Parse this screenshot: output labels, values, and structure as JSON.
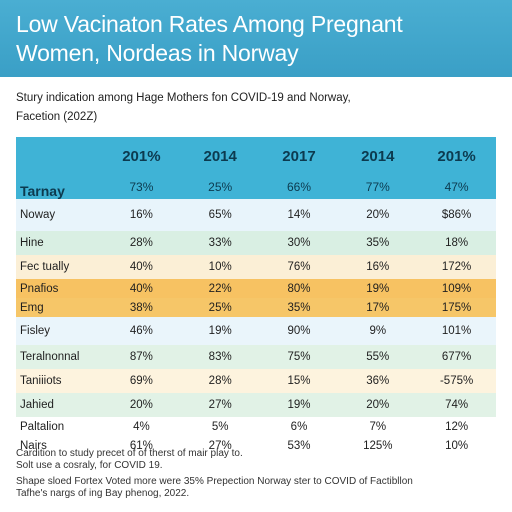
{
  "title_lines": [
    "Low Vacinaton Rates Among Pregnant",
    "Women, Nordeas in Norway"
  ],
  "subtitle_lines": [
    "Stury indication among Hage Mothers fon COVID-19 and Norway,",
    "Facetion (202Z)"
  ],
  "table": {
    "corner_label": "Tarnay",
    "years": [
      "201%",
      "2014",
      "2017",
      "2014",
      "201%"
    ],
    "header_values": [
      "73%",
      "25%",
      "66%",
      "77%",
      "47%"
    ],
    "rows": [
      {
        "label": "Noway",
        "values": [
          "16%",
          "65%",
          "14%",
          "20%",
          "$86%"
        ]
      },
      {
        "label": "Hine",
        "values": [
          "28%",
          "33%",
          "30%",
          "35%",
          "18%"
        ]
      },
      {
        "label": "Fec tually",
        "values": [
          "40%",
          "10%",
          "76%",
          "16%",
          "172%"
        ]
      },
      {
        "label": "Pnafios",
        "values": [
          "40%",
          "22%",
          "80%",
          "19%",
          "109%"
        ]
      },
      {
        "label": "Emg",
        "values": [
          "38%",
          "25%",
          "35%",
          "17%",
          "175%"
        ]
      },
      {
        "label": "Fisley",
        "values": [
          "46%",
          "19%",
          "90%",
          "9%",
          "101%"
        ]
      },
      {
        "label": "Teralnonnal",
        "values": [
          "87%",
          "83%",
          "75%",
          "55%",
          "677%"
        ]
      },
      {
        "label": "Taniiiots",
        "values": [
          "69%",
          "28%",
          "15%",
          "36%",
          "-575%"
        ]
      },
      {
        "label": "Jahied",
        "values": [
          "20%",
          "27%",
          "19%",
          "20%",
          "74%"
        ]
      },
      {
        "label": "Paltalion",
        "values": [
          "4%",
          "5%",
          "6%",
          "7%",
          "12%"
        ]
      },
      {
        "label": "Nairs",
        "values": [
          "61%",
          "27%",
          "53%",
          "125%",
          "10%"
        ]
      }
    ]
  },
  "footer_lines": [
    "Cardition to study precet of of therst of mair play to.",
    "Solt use a cosraly, for COVID 19.",
    "Shape sloed Fortex Voted more were 35% Prepection Norway ster to COVID of Factibllon",
    "Tafhe's nargs of ing Bay phenog, 2022."
  ],
  "colors": {
    "header_bg": "#3fa8cf",
    "table_header": "#3fb3d6",
    "orange_rows": "#f7c262"
  }
}
